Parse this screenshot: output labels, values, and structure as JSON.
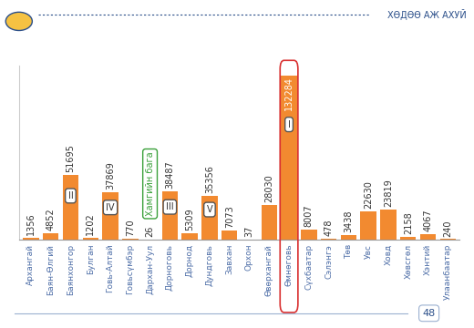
{
  "chart_data": {
    "type": "bar",
    "title": "ХӨДӨӨ АЖ АХУЙ",
    "page_number": "48",
    "categories": [
      "Архангай",
      "Баян-Өлгий",
      "Баянхонгор",
      "Булган",
      "Говь-Алтай",
      "Говьсүмбэр",
      "Дархан-Уул",
      "Дорноговь",
      "Дорнод",
      "Дундговь",
      "Завхан",
      "Орхон",
      "Өвөрхангай",
      "Өмнөговь",
      "Сүхбаатар",
      "Сэлэнгэ",
      "Төв",
      "Увс",
      "Ховд",
      "Хөвсгөл",
      "Хэнтий",
      "Улаанбаатар"
    ],
    "values": [
      1356,
      4852,
      51695,
      1202,
      37869,
      770,
      26,
      38487,
      5309,
      35356,
      7073,
      37,
      28030,
      132284,
      8007,
      478,
      3438,
      22630,
      23819,
      2158,
      4067,
      240
    ],
    "color": "#f28a30",
    "ylim": [
      0,
      140000
    ],
    "yticks": [],
    "grid": false,
    "data_labels": true,
    "tick_labels": "x",
    "annotations": [
      {
        "category": "Өмнөговь",
        "text": "I"
      },
      {
        "category": "Баянхонгор",
        "text": "II"
      },
      {
        "category": "Дорноговь",
        "text": "III"
      },
      {
        "category": "Говь-Алтай",
        "text": "IV"
      },
      {
        "category": "Дундговь",
        "text": "V"
      },
      {
        "category": "Дархан-Уул",
        "text": "Хамгийн бага"
      }
    ]
  }
}
